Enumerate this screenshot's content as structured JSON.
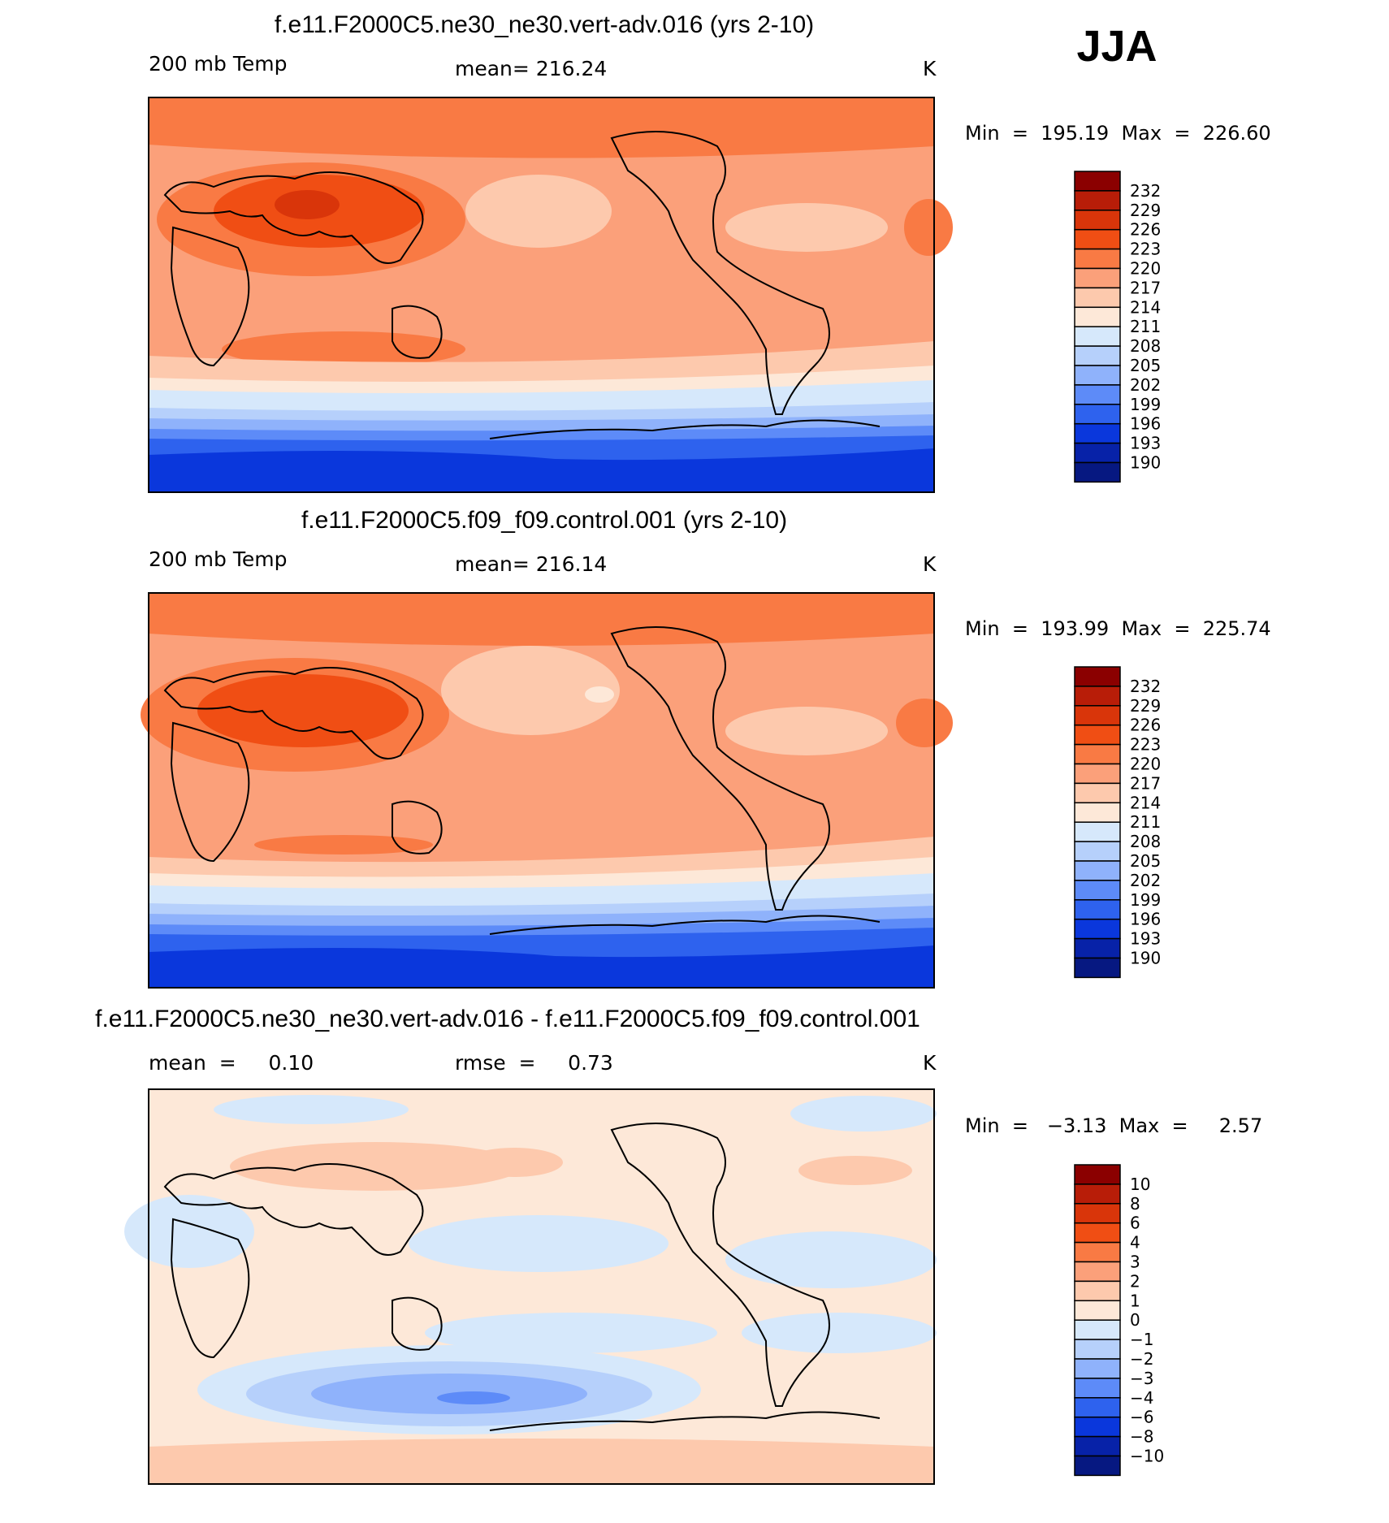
{
  "season": "JJA",
  "panels": [
    {
      "title": "f.e11.F2000C5.ne30_ne30.vert-adv.016 (yrs 2-10)",
      "left_label": "200 mb Temp",
      "mid_label": "mean=  216.24",
      "unit": "K",
      "minmax": "Min  =  195.19  Max  =  226.60",
      "levels": [
        "232",
        "229",
        "226",
        "223",
        "220",
        "217",
        "214",
        "211",
        "208",
        "205",
        "202",
        "199",
        "196",
        "193",
        "190"
      ],
      "colors": [
        "#8b0000",
        "#b81d08",
        "#d9350a",
        "#f04e14",
        "#f97a44",
        "#fba07a",
        "#fdc9ad",
        "#fde8d8",
        "#d6e8fb",
        "#b6d0fb",
        "#8fb2fb",
        "#5d8bf8",
        "#2e62ee",
        "#0a37dc",
        "#0722a8",
        "#061881"
      ]
    },
    {
      "title": "f.e11.F2000C5.f09_f09.control.001 (yrs 2-10)",
      "left_label": "200 mb Temp",
      "mid_label": "mean=  216.14",
      "unit": "K",
      "minmax": "Min  =  193.99  Max  =  225.74",
      "levels": [
        "232",
        "229",
        "226",
        "223",
        "220",
        "217",
        "214",
        "211",
        "208",
        "205",
        "202",
        "199",
        "196",
        "193",
        "190"
      ],
      "colors": [
        "#8b0000",
        "#b81d08",
        "#d9350a",
        "#f04e14",
        "#f97a44",
        "#fba07a",
        "#fdc9ad",
        "#fde8d8",
        "#d6e8fb",
        "#b6d0fb",
        "#8fb2fb",
        "#5d8bf8",
        "#2e62ee",
        "#0a37dc",
        "#0722a8",
        "#061881"
      ]
    },
    {
      "title": "f.e11.F2000C5.ne30_ne30.vert-adv.016 - f.e11.F2000C5.f09_f09.control.001",
      "left_label": "mean  =     0.10",
      "mid_label": "rmse  =     0.73",
      "unit": "K",
      "minmax": "Min  =   −3.13  Max  =     2.57",
      "levels": [
        "10",
        "8",
        "6",
        "4",
        "3",
        "2",
        "1",
        "0",
        "−1",
        "−2",
        "−3",
        "−4",
        "−6",
        "−8",
        "−10"
      ],
      "colors": [
        "#8b0000",
        "#b81d08",
        "#d9350a",
        "#f04e14",
        "#f97a44",
        "#fba07a",
        "#fdc9ad",
        "#fde8d8",
        "#d6e8fb",
        "#b6d0fb",
        "#8fb2fb",
        "#5d8bf8",
        "#2e62ee",
        "#0a37dc",
        "#0722a8",
        "#061881"
      ]
    }
  ],
  "chart_data": [
    {
      "type": "heatmap",
      "title": "f.e11.F2000C5.ne30_ne30.vert-adv.016 (yrs 2-10)",
      "mean": 216.24,
      "min": 195.19,
      "max": 226.6,
      "unit": "K",
      "levels": [
        232,
        229,
        226,
        223,
        220,
        217,
        214,
        211,
        208,
        205,
        202,
        199,
        196,
        193,
        190
      ]
    },
    {
      "type": "heatmap",
      "title": "f.e11.F2000C5.f09_f09.control.001 (yrs 2-10)",
      "mean": 216.14,
      "min": 193.99,
      "max": 225.74,
      "unit": "K",
      "levels": [
        232,
        229,
        226,
        223,
        220,
        217,
        214,
        211,
        208,
        205,
        202,
        199,
        196,
        193,
        190
      ]
    },
    {
      "type": "heatmap",
      "title": "f.e11.F2000C5.ne30_ne30.vert-adv.016 - f.e11.F2000C5.f09_f09.control.001",
      "mean": 0.1,
      "rmse": 0.73,
      "min": -3.13,
      "max": 2.57,
      "unit": "K",
      "levels": [
        10,
        8,
        6,
        4,
        3,
        2,
        1,
        0,
        -1,
        -2,
        -3,
        -4,
        -6,
        -8,
        -10
      ]
    }
  ]
}
